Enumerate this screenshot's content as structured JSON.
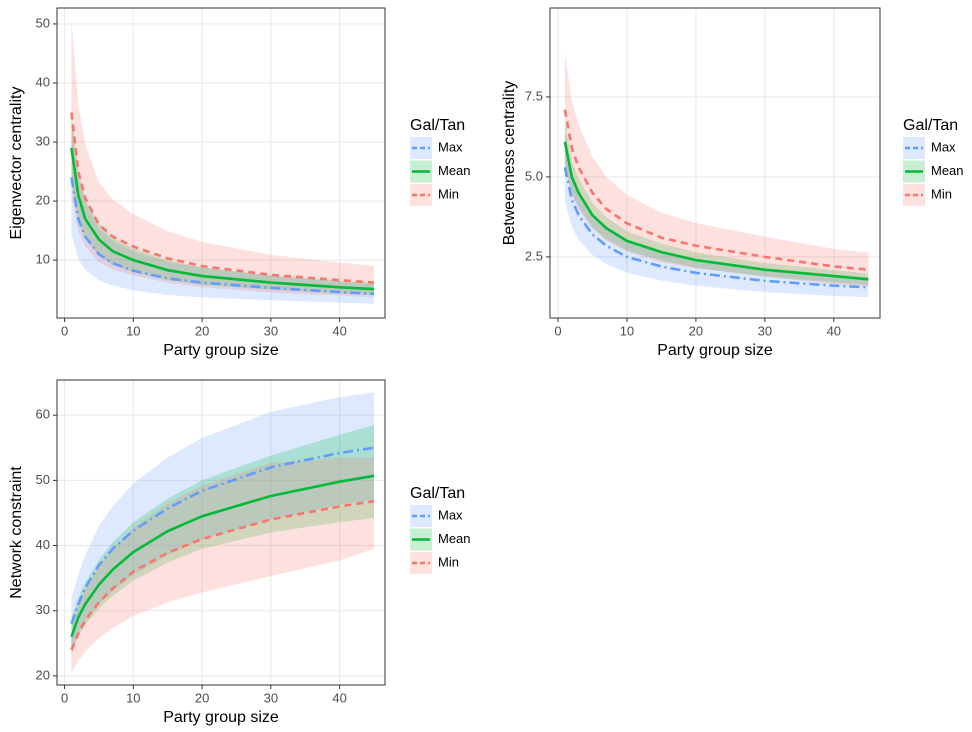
{
  "chart_data": [
    {
      "type": "line",
      "xlabel": "Party group size",
      "ylabel": "Eigenvector centrality",
      "legend_title": "Gal/Tan",
      "grid": true,
      "x": [
        1,
        2,
        3,
        5,
        7,
        10,
        15,
        20,
        30,
        40,
        45
      ],
      "xlim": [
        -1.1,
        46.6
      ],
      "xticks": [
        0,
        10,
        20,
        30,
        40
      ],
      "ylim": [
        0.2,
        52.7
      ],
      "yticks": [
        10,
        20,
        30,
        40,
        50
      ],
      "series": [
        {
          "name": "Max",
          "color": "#619cff",
          "linestyle": "dashdot",
          "values": [
            24,
            17,
            14,
            11,
            9.5,
            8.2,
            6.9,
            6.2,
            5.3,
            4.6,
            4.3
          ],
          "lower": [
            14.4,
            10.2,
            8.4,
            6.6,
            5.7,
            4.9,
            4.1,
            3.7,
            3.2,
            2.8,
            2.6
          ],
          "upper": [
            33.6,
            23.8,
            19.6,
            15.4,
            13.3,
            11.5,
            9.7,
            8.7,
            7.4,
            6.4,
            6.0
          ]
        },
        {
          "name": "Mean",
          "color": "#00ba38",
          "linestyle": "solid",
          "values": [
            29,
            21,
            17,
            13.5,
            11.5,
            10,
            8.3,
            7.3,
            6.2,
            5.4,
            5.1
          ],
          "lower": [
            23.2,
            16.8,
            13.6,
            10.8,
            9.2,
            8.0,
            6.6,
            5.8,
            5.0,
            4.3,
            4.1
          ],
          "upper": [
            34.8,
            25.2,
            20.4,
            16.2,
            13.8,
            12.0,
            10.0,
            8.8,
            7.4,
            6.5,
            6.1
          ]
        },
        {
          "name": "Min",
          "color": "#f8766d",
          "linestyle": "dashed",
          "values": [
            35,
            25,
            20.5,
            16,
            14,
            12.3,
            10.3,
            9,
            7.5,
            6.6,
            6.2
          ],
          "lower": [
            21,
            15,
            12.3,
            9.6,
            8.4,
            7.4,
            6.2,
            5.4,
            4.5,
            4.0,
            3.7
          ],
          "upper": [
            50.8,
            36.3,
            29.7,
            23.2,
            20.3,
            17.8,
            14.9,
            13.1,
            10.9,
            9.6,
            9.0
          ]
        }
      ]
    },
    {
      "type": "line",
      "xlabel": "Party group size",
      "ylabel": "Betweenness centrality",
      "legend_title": "Gal/Tan",
      "grid": true,
      "x": [
        1,
        2,
        3,
        5,
        7,
        10,
        15,
        20,
        30,
        40,
        45
      ],
      "xlim": [
        -1.16,
        46.7
      ],
      "xticks": [
        0,
        10,
        20,
        30,
        40
      ],
      "ylim": [
        0.59,
        10.28
      ],
      "yticks": [
        2.5,
        {
          "value": 5,
          "label": "5.0"
        },
        7.5
      ],
      "series": [
        {
          "name": "Max",
          "color": "#619cff",
          "linestyle": "dashdot",
          "values": [
            5.3,
            4.3,
            3.8,
            3.2,
            2.85,
            2.5,
            2.2,
            2.0,
            1.75,
            1.6,
            1.55
          ],
          "lower": [
            4.24,
            3.44,
            3.04,
            2.56,
            2.28,
            2.0,
            1.76,
            1.6,
            1.4,
            1.28,
            1.24
          ],
          "upper": [
            6.36,
            5.16,
            4.56,
            3.84,
            3.42,
            3.0,
            2.64,
            2.4,
            2.1,
            1.92,
            1.86
          ]
        },
        {
          "name": "Mean",
          "color": "#00ba38",
          "linestyle": "solid",
          "values": [
            6.1,
            5.0,
            4.5,
            3.8,
            3.4,
            3.0,
            2.65,
            2.4,
            2.1,
            1.9,
            1.8
          ],
          "lower": [
            5.49,
            4.5,
            4.05,
            3.42,
            3.06,
            2.7,
            2.39,
            2.16,
            1.89,
            1.71,
            1.62
          ],
          "upper": [
            6.71,
            5.5,
            4.95,
            4.18,
            3.74,
            3.3,
            2.92,
            2.64,
            2.31,
            2.09,
            1.98
          ]
        },
        {
          "name": "Min",
          "color": "#f8766d",
          "linestyle": "dashed",
          "values": [
            7.1,
            5.9,
            5.3,
            4.5,
            4.0,
            3.55,
            3.1,
            2.85,
            2.5,
            2.2,
            2.1
          ],
          "lower": [
            5.33,
            4.43,
            3.98,
            3.38,
            3.0,
            2.66,
            2.33,
            2.14,
            1.88,
            1.65,
            1.58
          ],
          "upper": [
            8.88,
            7.38,
            6.63,
            5.63,
            5.0,
            4.44,
            3.88,
            3.56,
            3.13,
            2.75,
            2.63
          ]
        }
      ]
    },
    {
      "type": "line",
      "xlabel": "Party group size",
      "ylabel": "Network constraint",
      "legend_title": "Gal/Tan",
      "grid": true,
      "x": [
        1,
        2,
        3,
        5,
        7,
        10,
        15,
        20,
        30,
        40,
        45
      ],
      "xlim": [
        -1.1,
        46.6
      ],
      "xticks": [
        0,
        10,
        20,
        30,
        40
      ],
      "ylim": [
        18.6,
        65.4
      ],
      "yticks": [
        20,
        30,
        40,
        50,
        60
      ],
      "series": [
        {
          "name": "Max",
          "color": "#619cff",
          "linestyle": "dashdot",
          "values": [
            28,
            31,
            33.5,
            37,
            39.5,
            42.3,
            45.7,
            48.4,
            52,
            54.2,
            55
          ],
          "lower": [
            24,
            26.5,
            28.5,
            31,
            33,
            35.5,
            38.5,
            41,
            44,
            46.3,
            47
          ],
          "upper": [
            32,
            35.5,
            38.5,
            43,
            46,
            49.5,
            53.5,
            56.5,
            60.5,
            62.8,
            63.5
          ]
        },
        {
          "name": "Mean",
          "color": "#00ba38",
          "linestyle": "solid",
          "values": [
            26,
            29,
            31,
            34,
            36.3,
            39,
            42.2,
            44.5,
            47.6,
            49.8,
            50.7
          ],
          "lower": [
            23.2,
            26,
            27.8,
            30.3,
            32.3,
            34.6,
            37.4,
            39.5,
            42,
            43.6,
            44.2
          ],
          "upper": [
            28.8,
            32,
            34.3,
            37.8,
            40.5,
            43.6,
            47.2,
            50,
            53.8,
            57,
            58.5
          ]
        },
        {
          "name": "Min",
          "color": "#f8766d",
          "linestyle": "dashed",
          "values": [
            24,
            26.5,
            28.5,
            31.3,
            33.4,
            36,
            38.9,
            41,
            44,
            46,
            46.8
          ],
          "lower": [
            20.5,
            22.3,
            23.8,
            25.8,
            27.3,
            29.2,
            31.3,
            32.8,
            35.3,
            37.7,
            39.5
          ],
          "upper": [
            27.5,
            30.7,
            33.2,
            36.8,
            39.5,
            42.8,
            46.5,
            49.2,
            52.7,
            53.5,
            53.5
          ]
        }
      ]
    }
  ]
}
